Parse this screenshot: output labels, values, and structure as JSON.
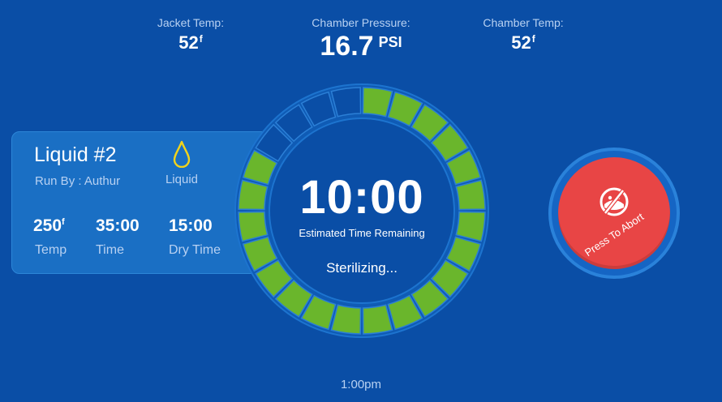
{
  "readouts": {
    "jacket": {
      "label": "Jacket Temp:",
      "value": "52",
      "unit": "f"
    },
    "pressure": {
      "label": "Chamber Pressure:",
      "value": "16.7",
      "unit": "PSI"
    },
    "chamber": {
      "label": "Chamber Temp:",
      "value": "52",
      "unit": "f"
    }
  },
  "cycle": {
    "name": "Liquid #2",
    "run_by": "Run By : Authur",
    "type_icon": "drop-icon",
    "type_label": "Liquid",
    "stats": [
      {
        "value": "250",
        "unit": "f",
        "label": "Temp"
      },
      {
        "value": "35:00",
        "label": "Time"
      },
      {
        "value": "15:00",
        "label": "Dry Time"
      }
    ]
  },
  "timer": {
    "value": "10:00",
    "label": "Estimated Time Remaining",
    "status": "Sterilizing...",
    "segments_total": 24,
    "segments_complete": 20
  },
  "abort": {
    "label": "Press To Abort",
    "icon": "abort-icon"
  },
  "clock": "1:00pm",
  "colors": {
    "background": "#0a4ea6",
    "progress_complete": "#6ab62c",
    "progress_pending": "#0a4ea6",
    "abort": "#e84545"
  }
}
